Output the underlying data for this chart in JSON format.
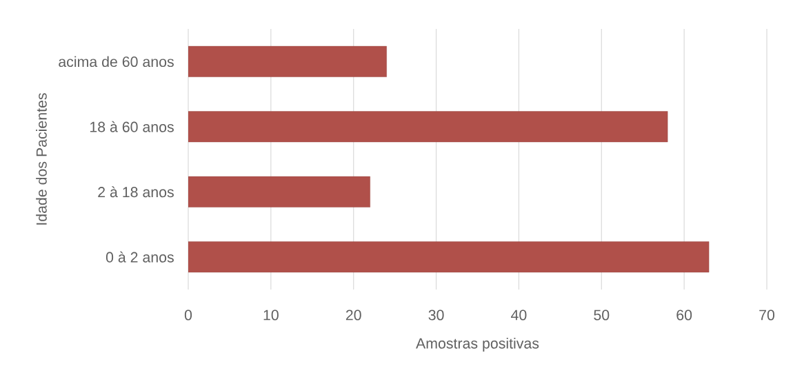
{
  "chart_data": {
    "type": "bar",
    "orientation": "horizontal",
    "xlabel": "Amostras positivas",
    "ylabel": "Idade dos Pacientes",
    "categories": [
      "acima de 60 anos",
      "18 à 60 anos",
      "2 à 18 anos",
      "0 à 2 anos"
    ],
    "values": [
      24,
      58,
      22,
      63
    ],
    "color": "#b0504a",
    "xlim": [
      0,
      70
    ],
    "xticks": [
      0,
      10,
      20,
      30,
      40,
      50,
      60,
      70
    ],
    "grid": "x"
  }
}
